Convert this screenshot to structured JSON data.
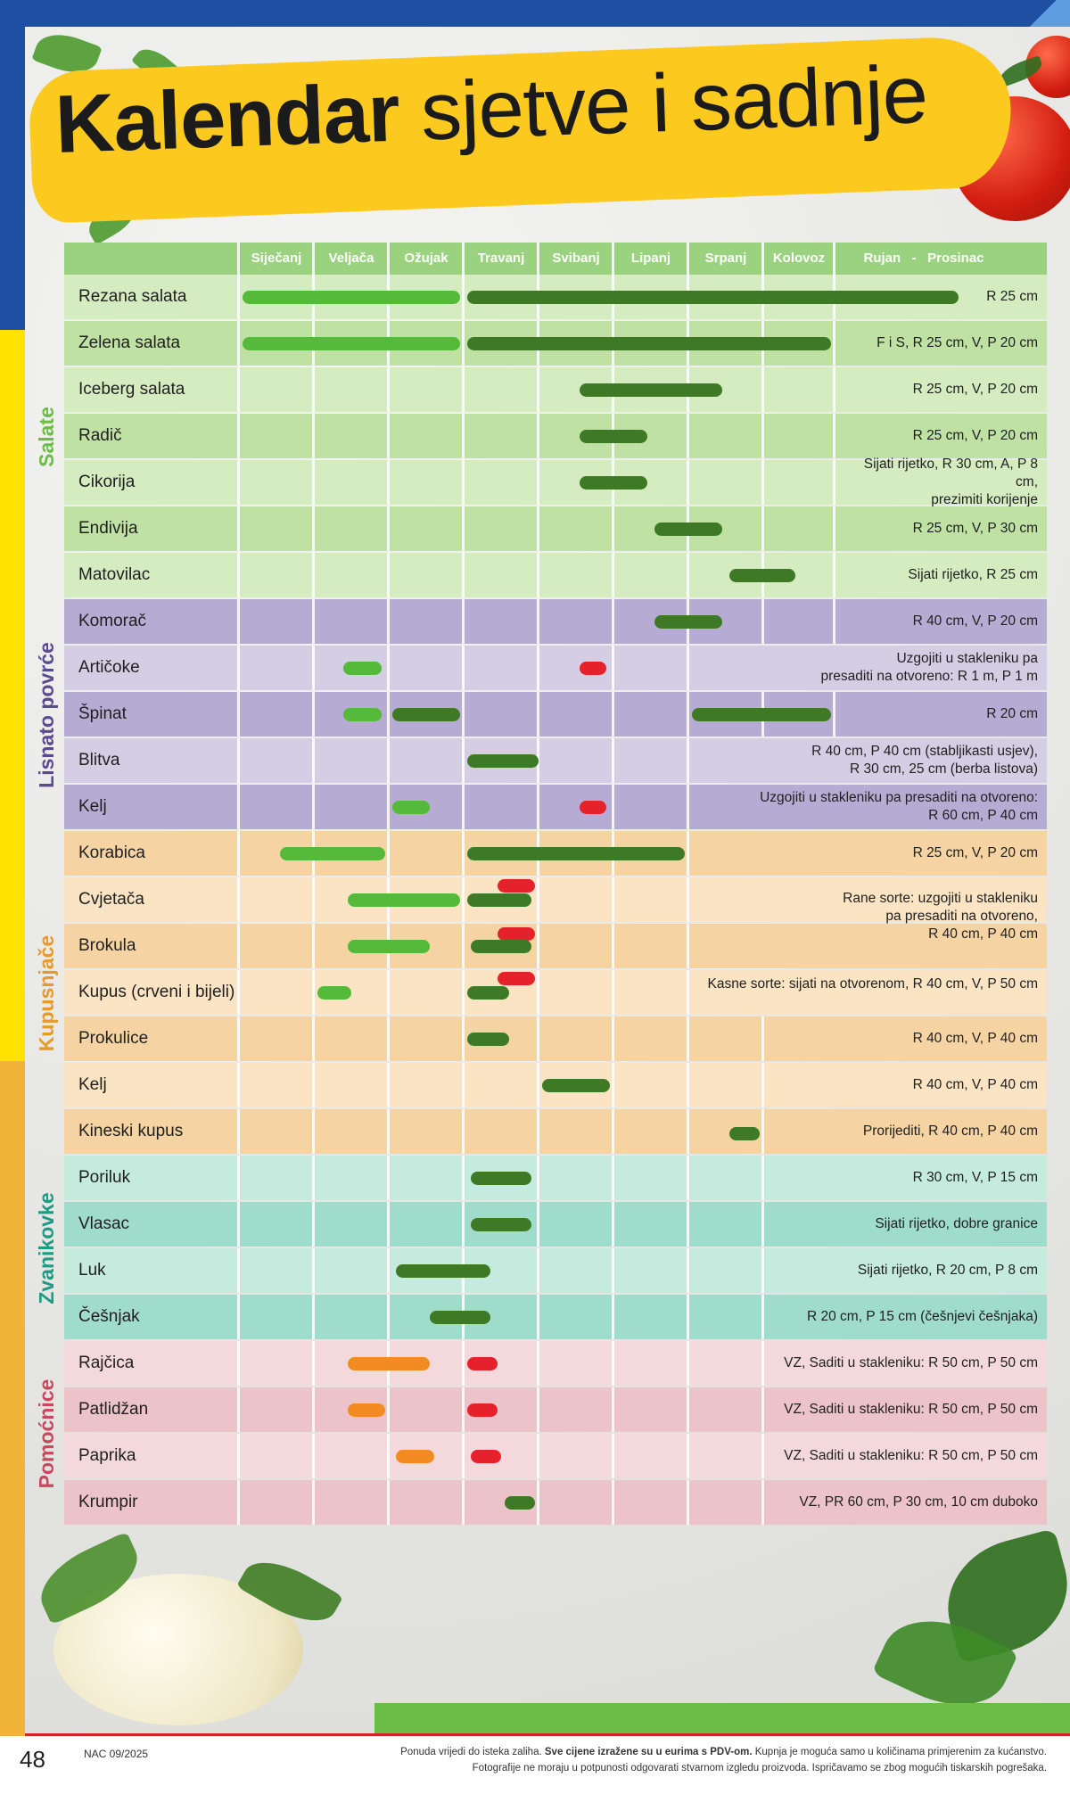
{
  "title": {
    "bold": "Kalendar",
    "rest": "sjetve i sadnje"
  },
  "months": [
    "Siječanj",
    "Veljača",
    "Ožujak",
    "Travanj",
    "Svibanj",
    "Lipanj",
    "Srpanj",
    "Kolovoz",
    "Rujan   -   Prosinac"
  ],
  "categories": [
    {
      "label": "Salate",
      "color": "#6cbd45"
    },
    {
      "label": "Lisnato povrće",
      "color": "#5a4a8f"
    },
    {
      "label": "Kupusnjače",
      "color": "#e69a2b"
    },
    {
      "label": "Zvanikovke",
      "color": "#1f9a83"
    },
    {
      "label": "Pomoćnice",
      "color": "#c9485f"
    }
  ],
  "rows": [
    {
      "name": "Rezana salata",
      "note": "R 25 cm",
      "cat": 0,
      "alt": 0
    },
    {
      "name": "Zelena salata",
      "note": "F i S, R 25 cm, V, P 20 cm",
      "cat": 0,
      "alt": 1
    },
    {
      "name": "Iceberg salata",
      "note": "R 25 cm, V, P 20 cm",
      "cat": 0,
      "alt": 0
    },
    {
      "name": "Radič",
      "note": "R 25 cm, V, P 20 cm",
      "cat": 0,
      "alt": 1
    },
    {
      "name": "Cikorija",
      "note": "Sijati rijetko, R 30 cm, A, P 8 cm,\nprezimiti korijenje",
      "cat": 0,
      "alt": 0
    },
    {
      "name": "Endivija",
      "note": "R 25 cm, V, P 30 cm",
      "cat": 0,
      "alt": 1
    },
    {
      "name": "Matovilac",
      "note": "Sijati rijetko, R 25 cm",
      "cat": 0,
      "alt": 0
    },
    {
      "name": "Komorač",
      "note": "R 40 cm, V, P 20 cm",
      "cat": 1,
      "alt": 1
    },
    {
      "name": "Artičoke",
      "note": "Uzgojiti u stakleniku pa\npresaditi na otvoreno: R 1 m, P 1 m",
      "cat": 1,
      "alt": 0
    },
    {
      "name": "Špinat",
      "note": "R 20 cm",
      "cat": 1,
      "alt": 1
    },
    {
      "name": "Blitva",
      "note": "R 40 cm, P 40 cm (stabljikasti usjev),\nR 30 cm,  25 cm (berba listova)",
      "cat": 1,
      "alt": 0
    },
    {
      "name": "Kelj",
      "note": "Uzgojiti u stakleniku pa presaditi na otvoreno:\nR 60 cm, P 40 cm",
      "cat": 1,
      "alt": 1
    },
    {
      "name": "Korabica",
      "note": "R 25 cm, V, P 20 cm",
      "cat": 2,
      "alt": 1
    },
    {
      "name": "Cvjetača",
      "note": "",
      "cat": 2,
      "alt": 0
    },
    {
      "name": "Brokula",
      "note": "",
      "cat": 2,
      "alt": 1
    },
    {
      "name": "Kupus (crveni i bijeli)",
      "note": "",
      "cat": 2,
      "alt": 0
    },
    {
      "name": "Prokulice",
      "note": "R 40 cm, V, P 40 cm",
      "cat": 2,
      "alt": 1
    },
    {
      "name": "Kelj",
      "note": "R 40 cm, V, P 40 cm",
      "cat": 2,
      "alt": 0
    },
    {
      "name": "Kineski kupus",
      "note": "Prorijediti, R 40 cm, P 40 cm",
      "cat": 2,
      "alt": 1
    },
    {
      "name": "Poriluk",
      "note": "R 30 cm, V, P 15 cm",
      "cat": 3,
      "alt": 0
    },
    {
      "name": "Vlasac",
      "note": "Sijati rijetko, dobre granice",
      "cat": 3,
      "alt": 1
    },
    {
      "name": "Luk",
      "note": "Sijati rijetko, R 20 cm, P 8 cm",
      "cat": 3,
      "alt": 0
    },
    {
      "name": "Češnjak",
      "note": "R 20 cm, P 15 cm (češnjevi češnjaka)",
      "cat": 3,
      "alt": 1
    },
    {
      "name": "Rajčica",
      "note": "VZ, Saditi u stakleniku: R 50 cm, P 50 cm",
      "cat": 4,
      "alt": 0
    },
    {
      "name": "Patlidžan",
      "note": "VZ, Saditi u stakleniku: R 50 cm, P 50 cm",
      "cat": 4,
      "alt": 1
    },
    {
      "name": "Paprika",
      "note": "VZ, Saditi u stakleniku: R 50 cm, P 50 cm",
      "cat": 4,
      "alt": 0
    },
    {
      "name": "Krumpir",
      "note": "VZ, PR 60 cm, P 30 cm, 10 cm duboko",
      "cat": 4,
      "alt": 1
    }
  ],
  "kupus_note": {
    "early": "Rane sorte: uzgojiti u stakleniku\npa presaditi na otvoreno,\nR 40 cm, P 40 cm",
    "late": "Kasne sorte: sijati na otvorenom, R 40 cm, V, P 50 cm"
  },
  "footer": {
    "page": "48",
    "issue": "NAC 09/2025",
    "line1_pre": "Ponuda vrijedi do isteka zaliha. ",
    "line1_bold": "Sve cijene izražene su u eurima s PDV-om.",
    "line1_post": " Kupnja je moguća samo u količinama primjerenim za kućanstvo.",
    "line2": "Fotografije ne moraju u potpunosti odgovarati stvarnom izgledu proizvoda. Ispričavamo se zbog mogućih tiskarskih pogrešaka."
  },
  "colors": {
    "salate": [
      "#d5ecc0",
      "#bfe2a4"
    ],
    "lisnato": [
      "#d4cde4",
      "#b6acd3"
    ],
    "kupus": [
      "#fae4c3",
      "#f5d3a2"
    ],
    "zvanik": [
      "#c5ebdf",
      "#a0dccb"
    ],
    "pomoc": [
      "#f4d9dc",
      "#ebc3c8"
    ],
    "light_green": "#55b93a",
    "dark_green": "#3e7a25",
    "red": "#e5222b",
    "orange": "#f28b22"
  }
}
